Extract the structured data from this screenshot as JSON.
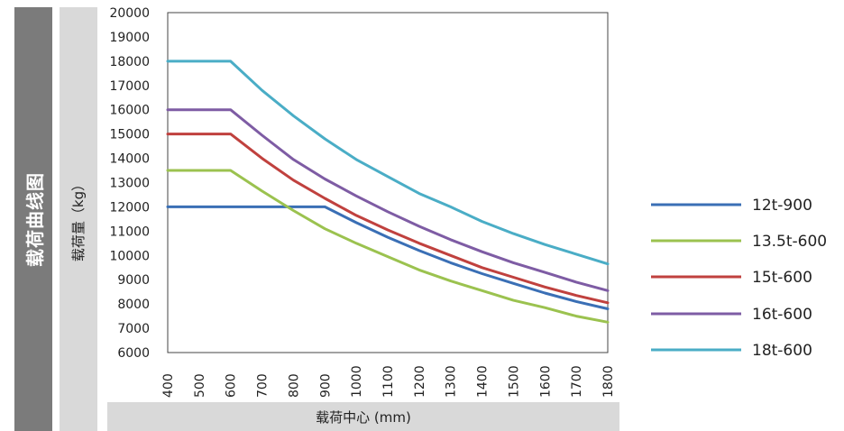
{
  "side_title": "载荷曲线图",
  "chart_data": {
    "type": "line",
    "xlabel": "载荷中心 (mm)",
    "ylabel": "载荷量（kg）",
    "xlim": [
      400,
      1800
    ],
    "ylim": [
      6000,
      20000
    ],
    "x_ticks": [
      400,
      500,
      600,
      700,
      800,
      900,
      1000,
      1100,
      1200,
      1300,
      1400,
      1500,
      1600,
      1700,
      1800
    ],
    "y_ticks": [
      6000,
      7000,
      8000,
      9000,
      10000,
      11000,
      12000,
      13000,
      14000,
      15000,
      16000,
      17000,
      18000,
      19000,
      20000
    ],
    "grid": true,
    "legend_position": "right",
    "x": [
      400,
      500,
      600,
      700,
      800,
      900,
      1000,
      1100,
      1200,
      1300,
      1400,
      1500,
      1600,
      1700,
      1800
    ],
    "series": [
      {
        "name": "12t-900",
        "color": "#3a6fb5",
        "values": [
          12000,
          12000,
          12000,
          12000,
          12000,
          12000,
          11350,
          10750,
          10200,
          9700,
          9250,
          8850,
          8450,
          8100,
          7800
        ]
      },
      {
        "name": "13.5t-600",
        "color": "#9bc24f",
        "values": [
          13500,
          13500,
          13500,
          12650,
          11850,
          11100,
          10500,
          9950,
          9400,
          8950,
          8550,
          8150,
          7850,
          7500,
          7250
        ]
      },
      {
        "name": "15t-600",
        "color": "#c0413e",
        "values": [
          15000,
          15000,
          15000,
          14000,
          13100,
          12350,
          11650,
          11050,
          10500,
          10000,
          9500,
          9100,
          8700,
          8350,
          8050
        ]
      },
      {
        "name": "16t-600",
        "color": "#7e5ca4",
        "values": [
          16000,
          16000,
          16000,
          14950,
          13950,
          13150,
          12450,
          11800,
          11200,
          10650,
          10150,
          9700,
          9300,
          8900,
          8550
        ]
      },
      {
        "name": "18t-600",
        "color": "#4aadc6",
        "values": [
          18000,
          18000,
          18000,
          16800,
          15750,
          14800,
          13950,
          13250,
          12550,
          12000,
          11400,
          10900,
          10450,
          10050,
          9650
        ]
      }
    ]
  }
}
